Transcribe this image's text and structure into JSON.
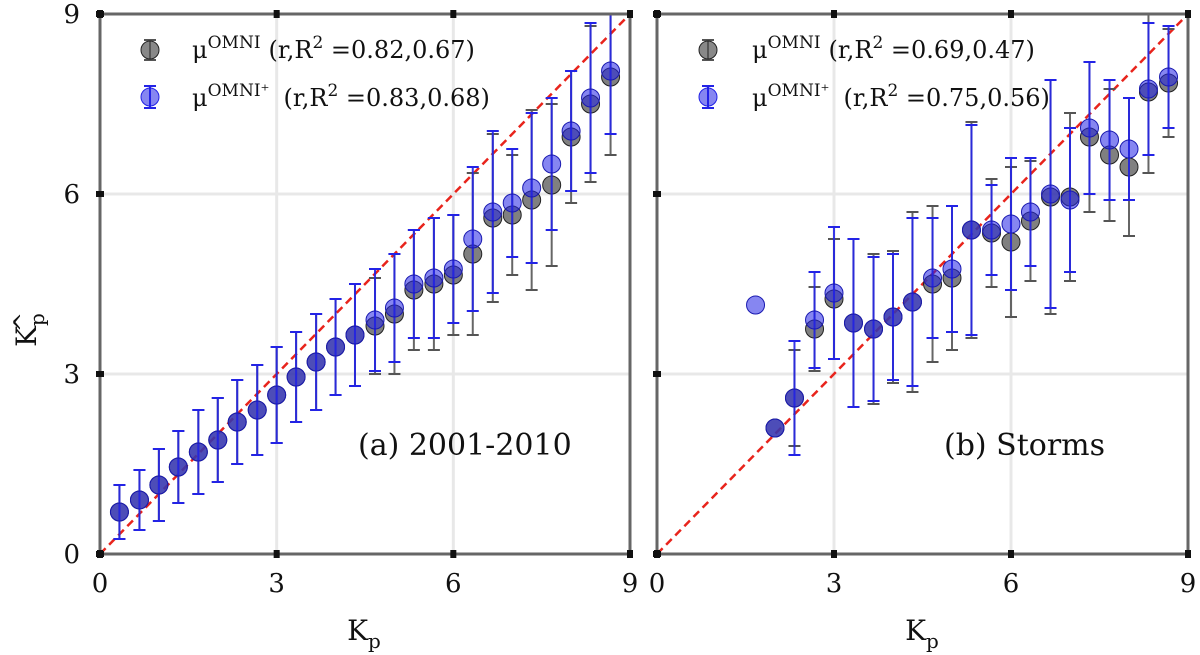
{
  "chart_data": [
    {
      "type": "scatter",
      "panel_label": "(a) 2001-2010",
      "xlabel": "K",
      "xlabel_sub": "p",
      "ylabel": "K",
      "ylabel_hat": "^",
      "ylabel_sub": "p",
      "xlim": [
        0,
        9
      ],
      "ylim": [
        0,
        9
      ],
      "xticks": [
        "0",
        "3",
        "6",
        "9"
      ],
      "yticks": [
        "0",
        "3",
        "6",
        "9"
      ],
      "grid": true,
      "legend_position": "top-left",
      "reference_line": {
        "x": [
          0,
          9
        ],
        "y": [
          0,
          9
        ],
        "style": "dashed",
        "color": "#e8241c"
      },
      "series": [
        {
          "name": "μ",
          "name_sup": "OMNI",
          "stats": "(r,R",
          "stats_sup": "2",
          "stats_tail": " =0.82,0.67)",
          "color": "#555555",
          "x": [
            0.33,
            0.67,
            1.0,
            1.33,
            1.67,
            2.0,
            2.33,
            2.67,
            3.0,
            3.33,
            3.67,
            4.0,
            4.33,
            4.67,
            5.0,
            5.33,
            5.67,
            6.0,
            6.33,
            6.67,
            7.0,
            7.33,
            7.67,
            8.0,
            8.33,
            8.67
          ],
          "y": [
            0.7,
            0.9,
            1.15,
            1.45,
            1.7,
            1.9,
            2.2,
            2.4,
            2.65,
            2.95,
            3.2,
            3.45,
            3.65,
            3.8,
            4.0,
            4.4,
            4.5,
            4.65,
            5.0,
            5.6,
            5.65,
            5.9,
            6.15,
            6.95,
            7.5,
            7.95
          ],
          "err": [
            0.45,
            0.5,
            0.6,
            0.6,
            0.7,
            0.7,
            0.7,
            0.75,
            0.8,
            0.75,
            0.8,
            0.8,
            0.85,
            0.8,
            1.0,
            1.0,
            1.1,
            1.0,
            1.35,
            1.4,
            1.0,
            1.5,
            1.35,
            1.1,
            1.3,
            1.3
          ]
        },
        {
          "name": "μ",
          "name_sup": "OMNI⁺",
          "stats": "(r,R",
          "stats_sup": "2",
          "stats_tail": " =0.83,0.68)",
          "color": "#2323e6",
          "x": [
            0.33,
            0.67,
            1.0,
            1.33,
            1.67,
            2.0,
            2.33,
            2.67,
            3.0,
            3.33,
            3.67,
            4.0,
            4.33,
            4.67,
            5.0,
            5.33,
            5.67,
            6.0,
            6.33,
            6.67,
            7.0,
            7.33,
            7.67,
            8.0,
            8.33,
            8.67
          ],
          "y": [
            0.7,
            0.9,
            1.15,
            1.45,
            1.7,
            1.9,
            2.2,
            2.4,
            2.65,
            2.95,
            3.2,
            3.45,
            3.65,
            3.9,
            4.1,
            4.5,
            4.6,
            4.75,
            5.25,
            5.7,
            5.85,
            6.1,
            6.5,
            7.05,
            7.6,
            8.05
          ],
          "err": [
            0.45,
            0.5,
            0.6,
            0.6,
            0.7,
            0.7,
            0.7,
            0.75,
            0.8,
            0.75,
            0.8,
            0.8,
            0.85,
            0.85,
            0.9,
            0.9,
            1.0,
            0.9,
            1.2,
            1.35,
            0.9,
            1.25,
            1.1,
            1.0,
            1.25,
            1.05
          ]
        }
      ]
    },
    {
      "type": "scatter",
      "panel_label": "(b) Storms",
      "xlabel": "K",
      "xlabel_sub": "p",
      "xlim": [
        0,
        9
      ],
      "ylim": [
        0,
        9
      ],
      "xticks": [
        "0",
        "3",
        "6",
        "9"
      ],
      "grid": true,
      "legend_position": "top-left",
      "reference_line": {
        "x": [
          0,
          9
        ],
        "y": [
          0,
          9
        ],
        "style": "dashed",
        "color": "#e8241c"
      },
      "series": [
        {
          "name": "μ",
          "name_sup": "OMNI",
          "stats": "(r,R",
          "stats_sup": "2",
          "stats_tail": " =0.69,0.47)",
          "color": "#555555",
          "x": [
            2.0,
            2.33,
            2.67,
            3.0,
            3.33,
            3.67,
            4.0,
            4.33,
            4.67,
            5.0,
            5.33,
            5.67,
            6.0,
            6.33,
            6.67,
            7.0,
            7.33,
            7.67,
            8.0,
            8.33,
            8.67
          ],
          "y": [
            2.1,
            2.6,
            3.75,
            4.25,
            3.85,
            3.75,
            3.95,
            4.2,
            4.5,
            4.6,
            5.4,
            5.35,
            5.2,
            5.55,
            5.95,
            5.95,
            6.95,
            6.65,
            6.45,
            7.7,
            7.85
          ],
          "err": [
            0.0,
            0.8,
            0.7,
            1.0,
            1.4,
            1.25,
            1.1,
            1.5,
            1.3,
            1.2,
            1.8,
            0.9,
            1.25,
            1.0,
            1.95,
            1.4,
            1.25,
            1.1,
            1.15,
            1.35,
            0.9
          ]
        },
        {
          "name": "μ",
          "name_sup": "OMNI⁺",
          "stats": "(r,R",
          "stats_sup": "2",
          "stats_tail": " =0.75,0.56)",
          "color": "#2323e6",
          "x": [
            1.67,
            2.0,
            2.33,
            2.67,
            3.0,
            3.33,
            3.67,
            4.0,
            4.33,
            4.67,
            5.0,
            5.33,
            5.67,
            6.0,
            6.33,
            6.67,
            7.0,
            7.33,
            7.67,
            8.0,
            8.33,
            8.67
          ],
          "y": [
            4.15,
            2.1,
            2.6,
            3.9,
            4.35,
            3.85,
            3.75,
            3.95,
            4.2,
            4.6,
            4.75,
            5.4,
            5.4,
            5.5,
            5.7,
            6.0,
            5.9,
            7.1,
            6.9,
            6.75,
            7.75,
            7.95
          ],
          "err": [
            0.0,
            0.0,
            0.95,
            0.8,
            1.1,
            1.4,
            1.2,
            1.05,
            1.4,
            1.0,
            1.05,
            1.75,
            0.75,
            1.1,
            0.9,
            1.9,
            1.2,
            1.1,
            1.0,
            0.85,
            1.1,
            0.85
          ]
        }
      ]
    }
  ]
}
